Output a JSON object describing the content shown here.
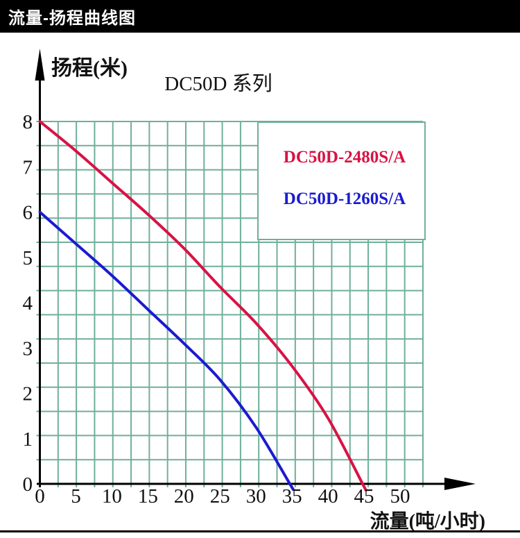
{
  "header": {
    "title": "流量-扬程曲线图"
  },
  "chart_data": {
    "type": "line",
    "title": "DC50D 系列",
    "xlabel": "流量(吨/小时)",
    "ylabel": "扬程(米)",
    "xlim": [
      0,
      53
    ],
    "ylim": [
      0,
      8
    ],
    "x_ticks": [
      0,
      5,
      10,
      15,
      20,
      25,
      30,
      35,
      40,
      45,
      50
    ],
    "y_ticks": [
      0,
      1,
      2,
      3,
      4,
      5,
      6,
      7,
      8
    ],
    "grid": true,
    "legend_position": "top-right",
    "series": [
      {
        "name": "DC50D-2480S/A",
        "color": "#d81244",
        "points": [
          [
            0,
            8.0
          ],
          [
            5,
            7.35
          ],
          [
            10,
            6.65
          ],
          [
            15,
            5.95
          ],
          [
            20,
            5.2
          ],
          [
            25,
            4.35
          ],
          [
            30,
            3.55
          ],
          [
            35,
            2.6
          ],
          [
            40,
            1.45
          ],
          [
            44.8,
            0
          ]
        ]
      },
      {
        "name": "DC50D-1260S/A",
        "color": "#1b1bd1",
        "points": [
          [
            0,
            6.0
          ],
          [
            5,
            5.3
          ],
          [
            10,
            4.6
          ],
          [
            15,
            3.85
          ],
          [
            20,
            3.1
          ],
          [
            25,
            2.3
          ],
          [
            30,
            1.25
          ],
          [
            34.7,
            0
          ]
        ]
      }
    ],
    "colors": {
      "grid": "#6faf9b",
      "axis": "#000000",
      "text": "#111111",
      "legend_box_fill": "#ffffff"
    }
  }
}
